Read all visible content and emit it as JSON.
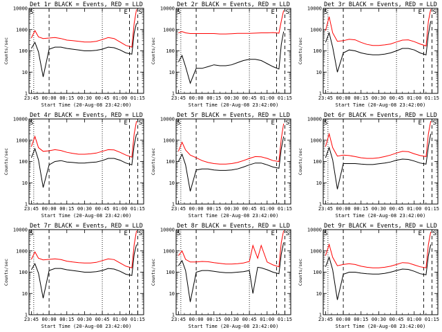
{
  "figure": {
    "xaxis_label": "Start Time (20-Aug-08 23:42:00)",
    "yaxis_label": "Counts/sec",
    "xticks": [
      "23:45",
      "00:00",
      "00:15",
      "00:30",
      "00:45",
      "01:00",
      "01:15"
    ],
    "yticks": [
      "1",
      "10",
      "100",
      "1000",
      "10000"
    ],
    "marker_left": "S",
    "marker_right": [
      "E",
      "S"
    ],
    "colors": {
      "events": "#000000",
      "lld": "#ff0000",
      "background": "#ffffff",
      "axes": "#000000"
    }
  },
  "chart_data": [
    {
      "type": "line",
      "title": "Det 1r BLACK = Events, RED = LLD",
      "xlabel": "Start Time (20-Aug-08 23:42:00)",
      "ylabel": "Counts/sec",
      "yscale": "log",
      "ylim": [
        1,
        10000
      ],
      "x": [
        "23:45",
        "23:48",
        "23:51",
        "23:55",
        "00:00",
        "00:05",
        "00:10",
        "00:15",
        "00:20",
        "00:25",
        "00:30",
        "00:35",
        "00:40",
        "00:45",
        "00:50",
        "00:55",
        "01:00",
        "01:05",
        "01:10",
        "01:12",
        "01:14"
      ],
      "series": [
        {
          "name": "LLD",
          "color": "#ff0000",
          "values": [
            400,
            900,
            450,
            380,
            400,
            420,
            380,
            320,
            300,
            280,
            260,
            260,
            280,
            340,
            420,
            380,
            260,
            180,
            150,
            2000,
            9000
          ]
        },
        {
          "name": "Events",
          "color": "#000000",
          "values": [
            130,
            250,
            90,
            6,
            120,
            150,
            150,
            130,
            120,
            110,
            100,
            100,
            105,
            120,
            150,
            140,
            110,
            80,
            70,
            700,
            2000
          ]
        }
      ]
    },
    {
      "type": "line",
      "title": "Det 2r BLACK = Events, RED = LLD",
      "xlabel": "Start Time (20-Aug-08 23:42:00)",
      "ylabel": "Counts/sec",
      "yscale": "log",
      "ylim": [
        1,
        10000
      ],
      "x": [
        "23:45",
        "23:48",
        "23:51",
        "23:55",
        "00:00",
        "00:05",
        "00:10",
        "00:15",
        "00:20",
        "00:25",
        "00:30",
        "00:35",
        "00:40",
        "00:45",
        "00:50",
        "00:55",
        "01:00",
        "01:05",
        "01:10",
        "01:12",
        "01:14"
      ],
      "series": [
        {
          "name": "LLD",
          "color": "#ff0000",
          "values": [
            700,
            800,
            700,
            650,
            650,
            650,
            650,
            650,
            620,
            620,
            640,
            660,
            660,
            660,
            680,
            700,
            700,
            720,
            680,
            2500,
            8000
          ]
        },
        {
          "name": "Events",
          "color": "#000000",
          "values": [
            30,
            60,
            18,
            3,
            15,
            15,
            18,
            22,
            20,
            20,
            22,
            28,
            35,
            40,
            40,
            35,
            25,
            18,
            14,
            200,
            800
          ]
        }
      ]
    },
    {
      "type": "line",
      "title": "Det 3r BLACK = Events, RED = LLD",
      "xlabel": "Start Time (20-Aug-08 23:42:00)",
      "ylabel": "Counts/sec",
      "yscale": "log",
      "ylim": [
        1,
        10000
      ],
      "x": [
        "23:45",
        "23:48",
        "23:51",
        "23:55",
        "00:00",
        "00:05",
        "00:10",
        "00:15",
        "00:20",
        "00:25",
        "00:30",
        "00:35",
        "00:40",
        "00:45",
        "00:50",
        "00:55",
        "01:00",
        "01:05",
        "01:10",
        "01:12",
        "01:14"
      ],
      "series": [
        {
          "name": "LLD",
          "color": "#ff0000",
          "values": [
            900,
            4000,
            700,
            280,
            300,
            350,
            330,
            250,
            200,
            180,
            180,
            190,
            210,
            260,
            320,
            330,
            270,
            210,
            170,
            2500,
            9000
          ]
        },
        {
          "name": "Events",
          "color": "#000000",
          "values": [
            250,
            700,
            150,
            10,
            80,
            110,
            100,
            80,
            70,
            65,
            65,
            70,
            80,
            100,
            130,
            130,
            110,
            80,
            65,
            600,
            2500
          ]
        }
      ]
    },
    {
      "type": "line",
      "title": "Det 4r BLACK = Events, RED = LLD",
      "xlabel": "Start Time (20-Aug-08 23:42:00)",
      "ylabel": "Counts/sec",
      "yscale": "log",
      "ylim": [
        1,
        10000
      ],
      "x": [
        "23:45",
        "23:48",
        "23:51",
        "23:55",
        "00:00",
        "00:05",
        "00:10",
        "00:15",
        "00:20",
        "00:25",
        "00:30",
        "00:35",
        "00:40",
        "00:45",
        "00:50",
        "00:55",
        "01:00",
        "01:05",
        "01:10",
        "01:12",
        "01:14"
      ],
      "series": [
        {
          "name": "LLD",
          "color": "#ff0000",
          "values": [
            500,
            1500,
            450,
            300,
            320,
            360,
            330,
            270,
            240,
            220,
            220,
            230,
            250,
            300,
            360,
            350,
            270,
            200,
            160,
            2000,
            8000
          ]
        },
        {
          "name": "Events",
          "color": "#000000",
          "values": [
            150,
            400,
            120,
            6,
            70,
            100,
            110,
            95,
            90,
            85,
            85,
            90,
            95,
            110,
            140,
            140,
            115,
            85,
            70,
            600,
            2000
          ]
        }
      ]
    },
    {
      "type": "line",
      "title": "Det 5r BLACK = Events, RED = LLD",
      "xlabel": "Start Time (20-Aug-08 23:42:00)",
      "ylabel": "Counts/sec",
      "yscale": "log",
      "ylim": [
        1,
        10000
      ],
      "x": [
        "23:45",
        "23:48",
        "23:51",
        "23:55",
        "00:00",
        "00:05",
        "00:10",
        "00:15",
        "00:20",
        "00:25",
        "00:30",
        "00:35",
        "00:40",
        "00:45",
        "00:50",
        "00:55",
        "01:00",
        "01:05",
        "01:10",
        "01:12",
        "01:14"
      ],
      "series": [
        {
          "name": "LLD",
          "color": "#ff0000",
          "values": [
            300,
            800,
            350,
            200,
            150,
            110,
            90,
            80,
            75,
            75,
            80,
            90,
            110,
            140,
            170,
            165,
            140,
            110,
            100,
            1200,
            6000
          ]
        },
        {
          "name": "Events",
          "color": "#000000",
          "values": [
            100,
            220,
            70,
            4,
            40,
            45,
            45,
            40,
            38,
            38,
            40,
            45,
            55,
            70,
            85,
            85,
            70,
            55,
            48,
            400,
            1500
          ]
        }
      ]
    },
    {
      "type": "line",
      "title": "Det 6r BLACK = Events, RED = LLD",
      "xlabel": "Start Time (20-Aug-08 23:42:00)",
      "ylabel": "Counts/sec",
      "yscale": "log",
      "ylim": [
        1,
        10000
      ],
      "x": [
        "23:45",
        "23:48",
        "23:51",
        "23:55",
        "00:00",
        "00:05",
        "00:10",
        "00:15",
        "00:20",
        "00:25",
        "00:30",
        "00:35",
        "00:40",
        "00:45",
        "00:50",
        "00:55",
        "01:00",
        "01:05",
        "01:10",
        "01:12",
        "01:14"
      ],
      "series": [
        {
          "name": "LLD",
          "color": "#ff0000",
          "values": [
            500,
            2000,
            450,
            180,
            200,
            190,
            170,
            150,
            140,
            140,
            150,
            170,
            200,
            250,
            300,
            290,
            230,
            190,
            170,
            2000,
            8000
          ]
        },
        {
          "name": "Events",
          "color": "#000000",
          "values": [
            150,
            450,
            120,
            5,
            80,
            80,
            80,
            75,
            72,
            72,
            78,
            85,
            95,
            115,
            130,
            125,
            105,
            85,
            75,
            500,
            2000
          ]
        }
      ]
    },
    {
      "type": "line",
      "title": "Det 7r BLACK = Events, RED = LLD",
      "xlabel": "Start Time (20-Aug-08 23:42:00)",
      "ylabel": "Counts/sec",
      "yscale": "log",
      "ylim": [
        1,
        10000
      ],
      "x": [
        "23:45",
        "23:48",
        "23:51",
        "23:55",
        "00:00",
        "00:05",
        "00:10",
        "00:15",
        "00:20",
        "00:25",
        "00:30",
        "00:35",
        "00:40",
        "00:45",
        "00:50",
        "00:55",
        "01:00",
        "01:05",
        "01:10",
        "01:12",
        "01:14"
      ],
      "series": [
        {
          "name": "LLD",
          "color": "#ff0000",
          "values": [
            400,
            900,
            450,
            380,
            400,
            420,
            390,
            330,
            300,
            280,
            270,
            270,
            290,
            350,
            420,
            390,
            270,
            190,
            160,
            2000,
            9000
          ]
        },
        {
          "name": "Events",
          "color": "#000000",
          "values": [
            130,
            250,
            90,
            6,
            120,
            150,
            150,
            130,
            120,
            110,
            100,
            100,
            105,
            120,
            150,
            140,
            110,
            80,
            70,
            700,
            2000
          ]
        }
      ]
    },
    {
      "type": "line",
      "title": "Det 8r BLACK = Events, RED = LLD",
      "xlabel": "Start Time (20-Aug-08 23:42:00)",
      "ylabel": "Counts/sec",
      "yscale": "log",
      "ylim": [
        1,
        10000
      ],
      "x": [
        "23:45",
        "23:48",
        "23:51",
        "23:55",
        "00:00",
        "00:05",
        "00:10",
        "00:15",
        "00:20",
        "00:25",
        "00:30",
        "00:35",
        "00:40",
        "00:45",
        "00:48",
        "00:52",
        "00:55",
        "01:00",
        "01:05",
        "01:10",
        "01:12",
        "01:14"
      ],
      "series": [
        {
          "name": "LLD",
          "color": "#ff0000",
          "values": [
            600,
            1000,
            400,
            300,
            300,
            320,
            310,
            280,
            260,
            240,
            240,
            250,
            270,
            320,
            1800,
            450,
            1800,
            300,
            220,
            180,
            2500,
            9000
          ]
        },
        {
          "name": "Events",
          "color": "#000000",
          "values": [
            200,
            350,
            120,
            4,
            100,
            120,
            120,
            110,
            100,
            95,
            95,
            100,
            105,
            120,
            10,
            170,
            160,
            130,
            100,
            85,
            700,
            2500
          ]
        }
      ]
    },
    {
      "type": "line",
      "title": "Det 9r BLACK = Events, RED = LLD",
      "xlabel": "Start Time (20-Aug-08 23:42:00)",
      "ylabel": "Counts/sec",
      "yscale": "log",
      "ylim": [
        1,
        10000
      ],
      "x": [
        "23:45",
        "23:48",
        "23:51",
        "23:55",
        "00:00",
        "00:05",
        "00:10",
        "00:15",
        "00:20",
        "00:25",
        "00:30",
        "00:35",
        "00:40",
        "00:45",
        "00:50",
        "00:55",
        "01:00",
        "01:05",
        "01:10",
        "01:12",
        "01:14"
      ],
      "series": [
        {
          "name": "LLD",
          "color": "#ff0000",
          "values": [
            600,
            2000,
            500,
            200,
            230,
            250,
            230,
            190,
            170,
            160,
            160,
            170,
            190,
            230,
            280,
            270,
            220,
            180,
            160,
            2000,
            8000
          ]
        },
        {
          "name": "Events",
          "color": "#000000",
          "values": [
            180,
            500,
            130,
            5,
            80,
            100,
            100,
            90,
            85,
            82,
            82,
            88,
            100,
            120,
            140,
            135,
            110,
            85,
            75,
            600,
            2000
          ]
        }
      ]
    }
  ]
}
